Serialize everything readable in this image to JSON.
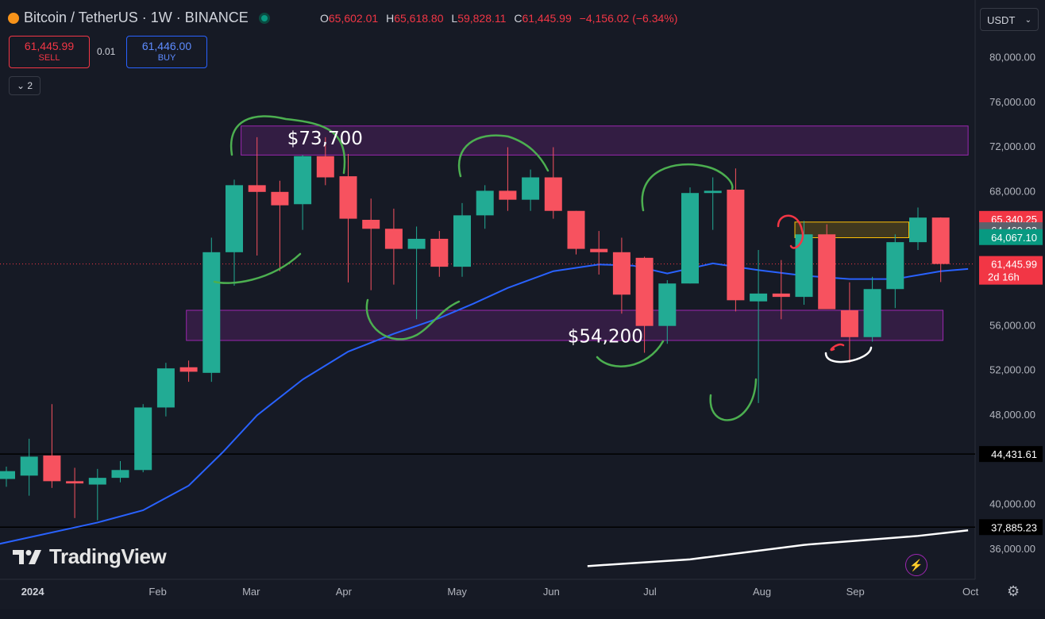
{
  "header": {
    "symbol": "Bitcoin / TetherUS · 1W · BINANCE",
    "o_label": "O",
    "o": "65,602.01",
    "h_label": "H",
    "h": "65,618.80",
    "l_label": "L",
    "l": "59,828.11",
    "c_label": "C",
    "c": "61,445.99",
    "change": "−4,156.02 (−6.34%)"
  },
  "trade": {
    "sell_price": "61,445.99",
    "sell_label": "SELL",
    "spread": "0.01",
    "buy_price": "61,446.00",
    "buy_label": "BUY"
  },
  "indicators_toggle": "2",
  "currency": "USDT",
  "logo_text": "TradingView",
  "colors": {
    "up": "#22ab94",
    "down": "#f7525f",
    "ma": "#2962ff",
    "zone": "#9c27b0",
    "bg": "#161a25"
  },
  "chart_data": {
    "type": "candlestick",
    "y_ticks": [
      {
        "v": 80000,
        "label": "80,000.00"
      },
      {
        "v": 76000,
        "label": "76,000.00"
      },
      {
        "v": 72000,
        "label": "72,000.00"
      },
      {
        "v": 68000,
        "label": "68,000.00"
      },
      {
        "v": 56000,
        "label": "56,000.00"
      },
      {
        "v": 52000,
        "label": "52,000.00"
      },
      {
        "v": 48000,
        "label": "48,000.00"
      },
      {
        "v": 40000,
        "label": "40,000.00"
      },
      {
        "v": 36000,
        "label": "36,000.00"
      }
    ],
    "x_ticks": [
      {
        "i": 1,
        "label": "2024"
      },
      {
        "i": 6.6,
        "label": "Feb"
      },
      {
        "i": 10.7,
        "label": "Mar"
      },
      {
        "i": 14.8,
        "label": "Apr"
      },
      {
        "i": 19.7,
        "label": "May"
      },
      {
        "i": 23.9,
        "label": "Jun"
      },
      {
        "i": 28.3,
        "label": "Jul"
      },
      {
        "i": 33.1,
        "label": "Aug"
      },
      {
        "i": 37.2,
        "label": "Sep"
      },
      {
        "i": 42.3,
        "label": "Oct"
      }
    ],
    "candles": [
      {
        "o": 42200,
        "h": 43300,
        "l": 41500,
        "c": 42900
      },
      {
        "o": 42500,
        "h": 45800,
        "l": 40700,
        "c": 44200
      },
      {
        "o": 44300,
        "h": 48900,
        "l": 41400,
        "c": 42000
      },
      {
        "o": 42000,
        "h": 43200,
        "l": 38700,
        "c": 41800
      },
      {
        "o": 41700,
        "h": 43100,
        "l": 38500,
        "c": 42300
      },
      {
        "o": 42300,
        "h": 43800,
        "l": 41900,
        "c": 43000
      },
      {
        "o": 43000,
        "h": 48900,
        "l": 42800,
        "c": 48600
      },
      {
        "o": 48600,
        "h": 52600,
        "l": 47800,
        "c": 52100
      },
      {
        "o": 52200,
        "h": 52800,
        "l": 50900,
        "c": 51800
      },
      {
        "o": 51700,
        "h": 63800,
        "l": 50900,
        "c": 62500
      },
      {
        "o": 62500,
        "h": 69000,
        "l": 59500,
        "c": 68500
      },
      {
        "o": 68500,
        "h": 72800,
        "l": 62200,
        "c": 67900
      },
      {
        "o": 67900,
        "h": 68900,
        "l": 60800,
        "c": 66700
      },
      {
        "o": 66800,
        "h": 71200,
        "l": 64500,
        "c": 71100
      },
      {
        "o": 71100,
        "h": 72800,
        "l": 68500,
        "c": 69200
      },
      {
        "o": 69300,
        "h": 71300,
        "l": 59800,
        "c": 65500
      },
      {
        "o": 65400,
        "h": 67300,
        "l": 59100,
        "c": 64600
      },
      {
        "o": 64600,
        "h": 66400,
        "l": 59600,
        "c": 62800
      },
      {
        "o": 62800,
        "h": 64800,
        "l": 56500,
        "c": 63700
      },
      {
        "o": 63700,
        "h": 64400,
        "l": 60300,
        "c": 61200
      },
      {
        "o": 61200,
        "h": 66900,
        "l": 60300,
        "c": 65800
      },
      {
        "o": 65800,
        "h": 68500,
        "l": 64600,
        "c": 68000
      },
      {
        "o": 68000,
        "h": 71900,
        "l": 66200,
        "c": 67200
      },
      {
        "o": 67200,
        "h": 69900,
        "l": 66200,
        "c": 69200
      },
      {
        "o": 69200,
        "h": 71900,
        "l": 65500,
        "c": 66200
      },
      {
        "o": 66200,
        "h": 66200,
        "l": 62300,
        "c": 62800
      },
      {
        "o": 62800,
        "h": 64400,
        "l": 60500,
        "c": 62500
      },
      {
        "o": 62500,
        "h": 63800,
        "l": 57000,
        "c": 58700
      },
      {
        "o": 62000,
        "h": 62100,
        "l": 53500,
        "c": 55900
      },
      {
        "o": 55900,
        "h": 60000,
        "l": 54300,
        "c": 59700
      },
      {
        "o": 59700,
        "h": 68300,
        "l": 59700,
        "c": 67800
      },
      {
        "o": 67800,
        "h": 69200,
        "l": 64500,
        "c": 68000
      },
      {
        "o": 68100,
        "h": 70000,
        "l": 57200,
        "c": 58200
      },
      {
        "o": 58100,
        "h": 62700,
        "l": 49000,
        "c": 58800
      },
      {
        "o": 58800,
        "h": 61800,
        "l": 56500,
        "c": 58500
      },
      {
        "o": 58500,
        "h": 65300,
        "l": 57800,
        "c": 64100
      },
      {
        "o": 64100,
        "h": 65000,
        "l": 57500,
        "c": 57400
      },
      {
        "o": 57300,
        "h": 59800,
        "l": 52600,
        "c": 54900
      },
      {
        "o": 54900,
        "h": 60300,
        "l": 54500,
        "c": 59200
      },
      {
        "o": 59200,
        "h": 64100,
        "l": 57500,
        "c": 63400
      },
      {
        "o": 63400,
        "h": 66500,
        "l": 62700,
        "c": 65600
      },
      {
        "o": 65602.01,
        "h": 65618.8,
        "l": 59828.11,
        "c": 61445.99
      }
    ],
    "ma_series": [
      {
        "i": -0.5,
        "v": 36300
      },
      {
        "i": 4,
        "v": 38300
      },
      {
        "i": 6,
        "v": 39400
      },
      {
        "i": 8,
        "v": 41600
      },
      {
        "i": 9.5,
        "v": 44600
      },
      {
        "i": 11,
        "v": 47900
      },
      {
        "i": 13,
        "v": 51100
      },
      {
        "i": 15,
        "v": 53600
      },
      {
        "i": 17,
        "v": 55200
      },
      {
        "i": 19,
        "v": 56600
      },
      {
        "i": 20.5,
        "v": 57900
      },
      {
        "i": 22,
        "v": 59300
      },
      {
        "i": 24,
        "v": 60800
      },
      {
        "i": 26,
        "v": 61400
      },
      {
        "i": 27.5,
        "v": 61300
      },
      {
        "i": 29,
        "v": 60600
      },
      {
        "i": 31,
        "v": 61500
      },
      {
        "i": 33,
        "v": 60900
      },
      {
        "i": 35,
        "v": 60400
      },
      {
        "i": 37,
        "v": 60100
      },
      {
        "i": 39,
        "v": 60100
      },
      {
        "i": 41,
        "v": 60800
      },
      {
        "i": 42.2,
        "v": 61000
      }
    ],
    "long_ma_series": [
      {
        "i": 25.5,
        "v": 34400
      },
      {
        "i": 30,
        "v": 35000
      },
      {
        "i": 35,
        "v": 36300
      },
      {
        "i": 40,
        "v": 37100
      },
      {
        "i": 42.2,
        "v": 37600
      }
    ],
    "zones": [
      {
        "name": "resistance-zone",
        "from_i": 10.3,
        "to_i": 42.2,
        "low": 71200,
        "high": 73800
      },
      {
        "name": "support-zone",
        "from_i": 7.9,
        "to_i": 41.1,
        "low": 54600,
        "high": 57300
      },
      {
        "name": "small-zone",
        "from_i": 34.6,
        "to_i": 39.6,
        "low": 63800,
        "high": 65200
      }
    ],
    "horizontal_lines": [
      {
        "v": 44431.61,
        "label": "44,431.61"
      },
      {
        "v": 37885.23,
        "label": "37,885.23"
      }
    ],
    "annotations": [
      {
        "text": "$73,700",
        "i": 12.5,
        "v": 72700
      },
      {
        "text": "$54,200",
        "i": 24.8,
        "v": 55000
      }
    ],
    "price_labels": [
      {
        "v": 65340.25,
        "label": "65,340.25",
        "color": "#f23645"
      },
      {
        "v": 64469.83,
        "label": "64,469.83",
        "color": "#5d606b"
      },
      {
        "v": 64067.1,
        "label": "64,067.10",
        "color": "#089981"
      },
      {
        "v": 61445.99,
        "label": "61,445.99",
        "color": "#f23645",
        "sub": "2d 16h"
      }
    ]
  }
}
